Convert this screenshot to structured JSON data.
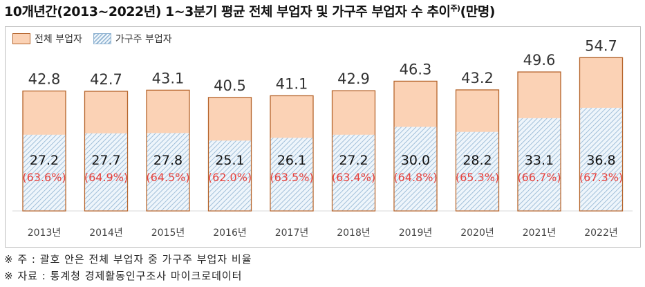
{
  "title": "10개년간(2013~2022년) 1~3분기 평균 전체 부업자 및 가구주 부업자 수 추이",
  "title_superscript": "주)",
  "title_unit": "(만명)",
  "legend": {
    "total_label": "전체 부업자",
    "household_label": "가구주 부업자"
  },
  "chart_data": {
    "type": "bar",
    "categories": [
      "2013년",
      "2014년",
      "2015년",
      "2016년",
      "2017년",
      "2018년",
      "2019년",
      "2020년",
      "2021년",
      "2022년"
    ],
    "series": [
      {
        "name": "전체 부업자",
        "values": [
          42.8,
          42.7,
          43.1,
          40.5,
          41.1,
          42.9,
          46.3,
          43.2,
          49.6,
          54.7
        ]
      },
      {
        "name": "가구주 부업자",
        "values": [
          27.2,
          27.7,
          27.8,
          25.1,
          26.1,
          27.2,
          30.0,
          28.2,
          33.1,
          36.8
        ]
      }
    ],
    "total_labels": [
      "42.8",
      "42.7",
      "43.1",
      "40.5",
      "41.1",
      "42.9",
      "46.3",
      "43.2",
      "49.6",
      "54.7"
    ],
    "household_labels": [
      "27.2",
      "27.7",
      "27.8",
      "25.1",
      "26.1",
      "27.2",
      "30.0",
      "28.2",
      "33.1",
      "36.8"
    ],
    "ratio_labels": [
      "(63.6%)",
      "(64.9%)",
      "(64.5%)",
      "(62.0%)",
      "(63.5%)",
      "(63.4%)",
      "(64.8%)",
      "(65.3%)",
      "(66.7%)",
      "(67.3%)"
    ],
    "ratio_color": "#e8413c",
    "total_fill": "#fbd2b5",
    "total_stroke": "#b5632a",
    "household_color": "#8fb3d1",
    "ylim": [
      0,
      58
    ],
    "grid": false,
    "legend_position": "top-left"
  },
  "notes": {
    "note1": "※ 주 : 괄호 안은 전체 부업자 중 가구주 부업자 비율",
    "note2": "※ 자료 : 통계청 경제활동인구조사 마이크로데이터"
  }
}
